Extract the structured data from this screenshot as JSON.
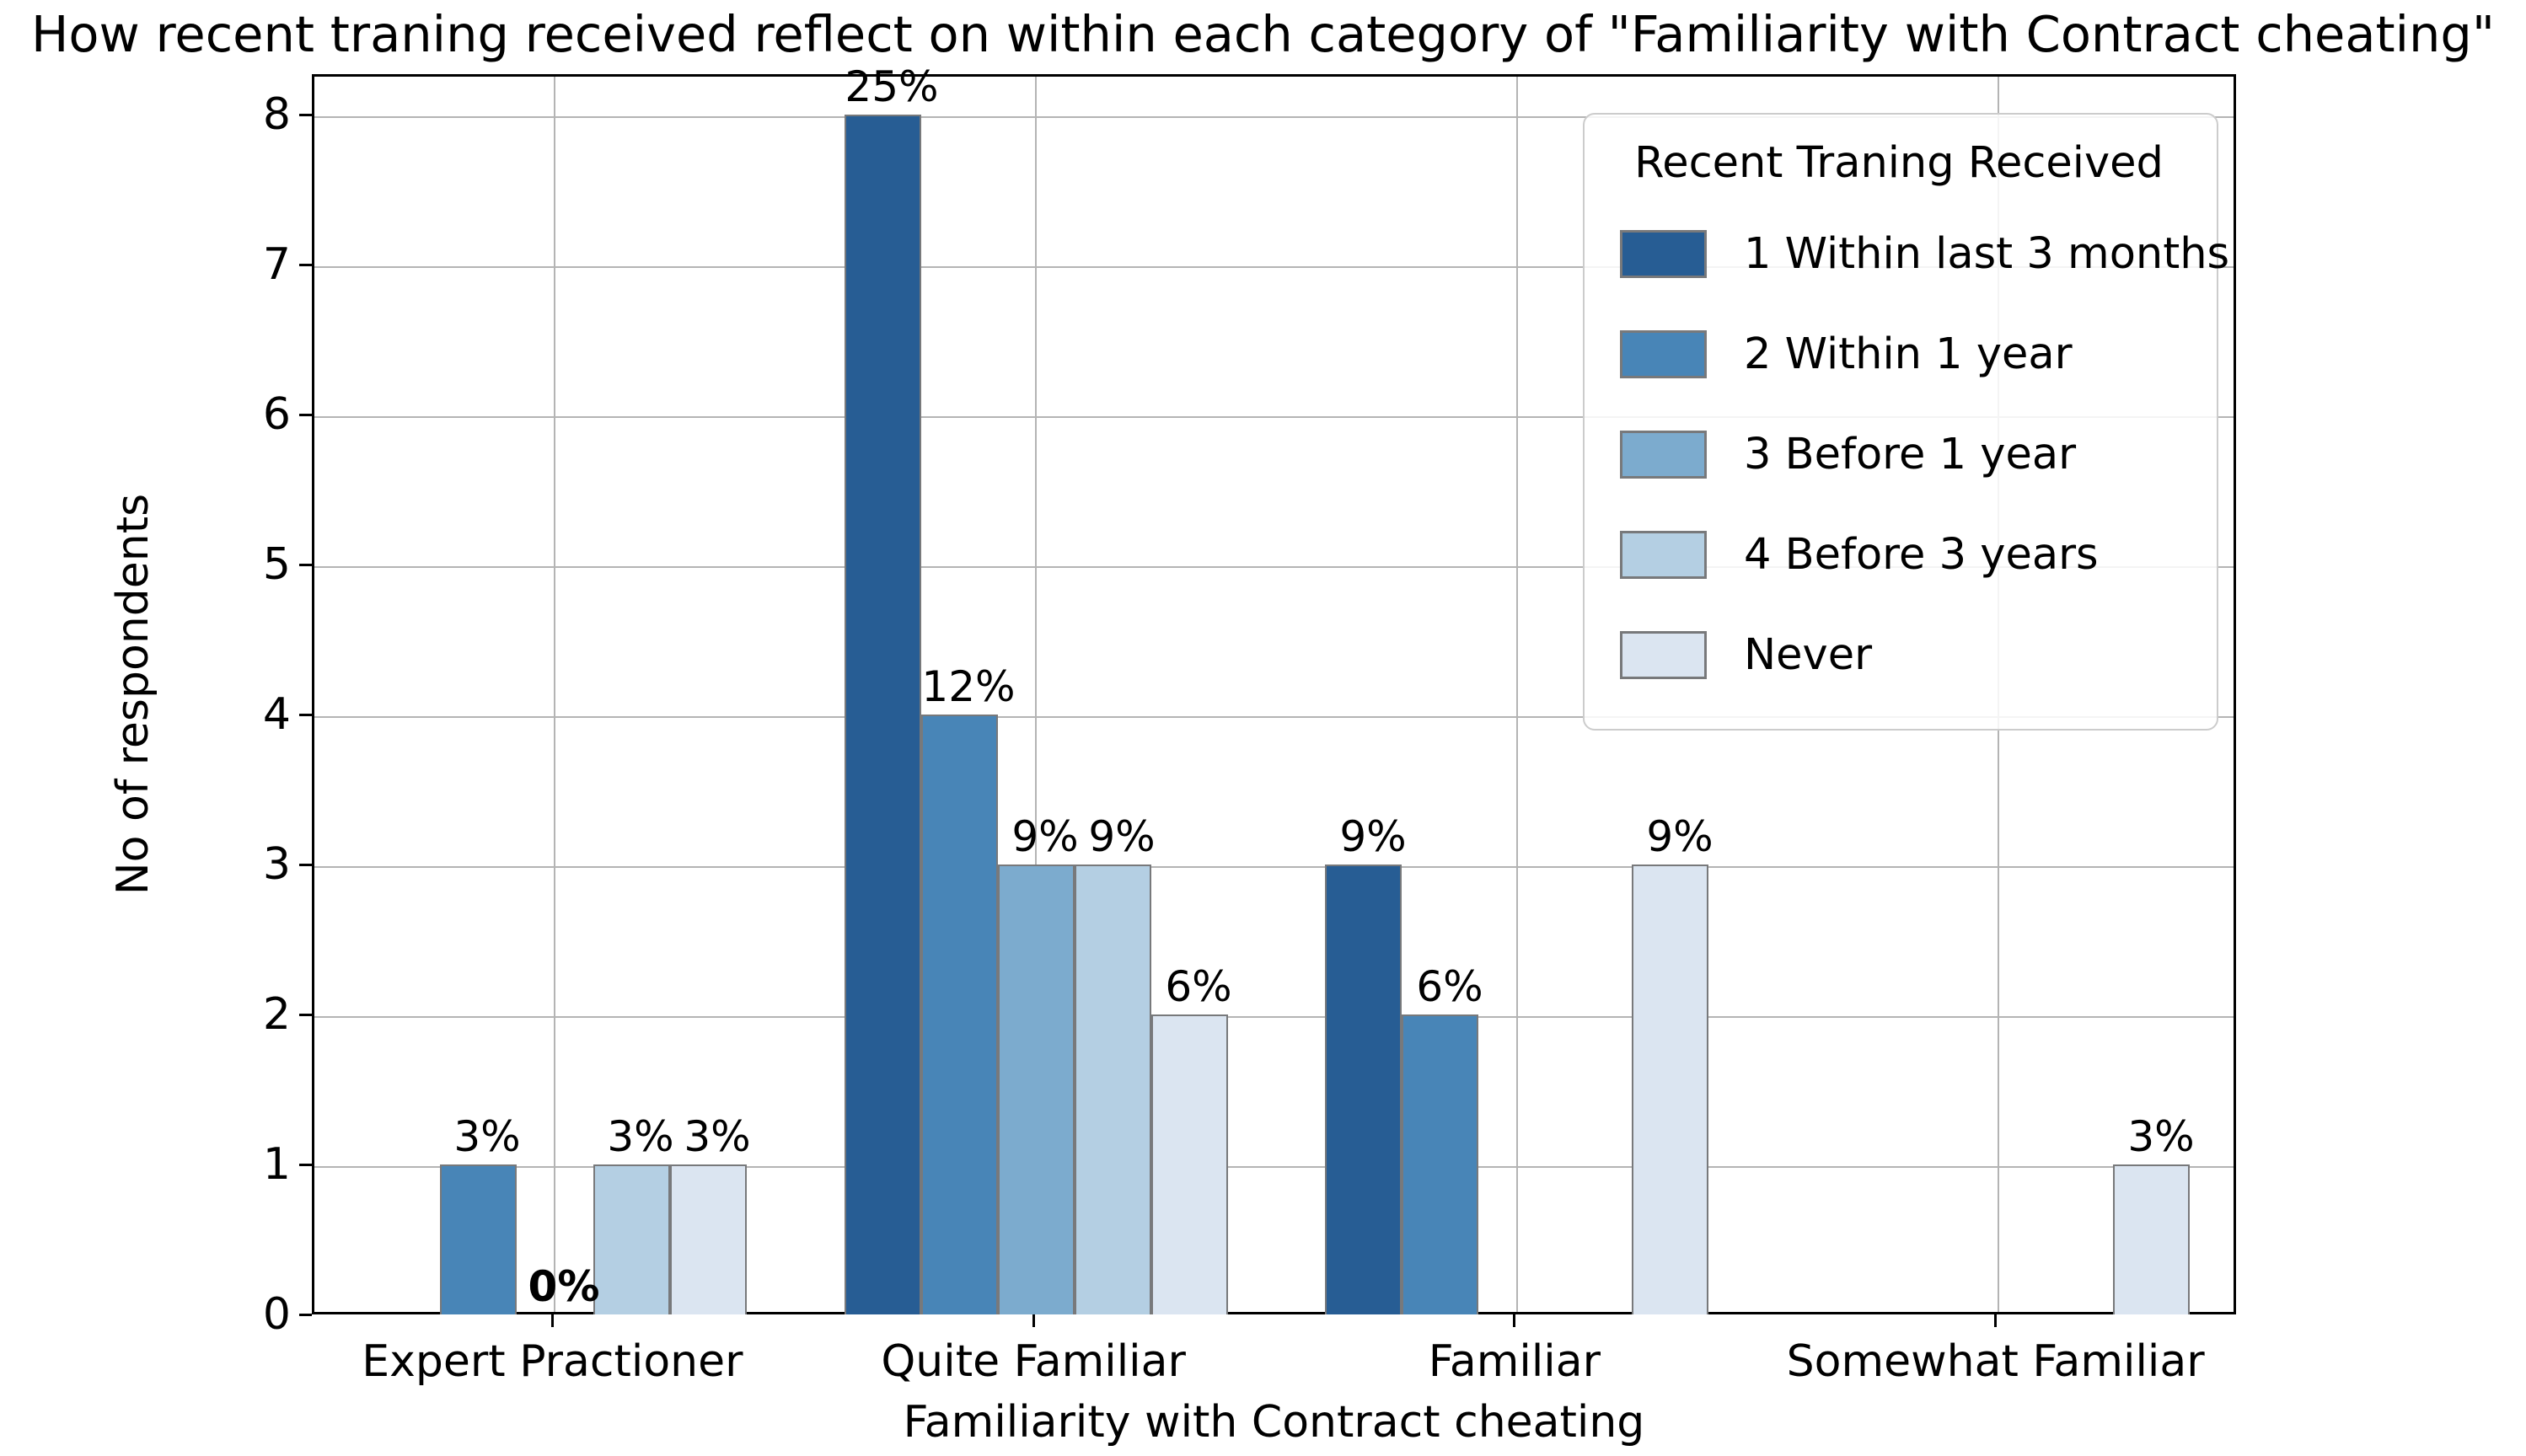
{
  "title": "How recent traning received reflect on within each category of \"Familiarity with Contract cheating\"",
  "chart_data": {
    "type": "bar",
    "grouped": true,
    "title": "How recent traning received reflect on within each category of \"Familiarity with Contract cheating\"",
    "xlabel": "Familiarity with Contract cheating",
    "ylabel": "No of respondents",
    "categories": [
      "Expert Practioner",
      "Quite Familiar",
      "Familiar",
      "Somewhat Familiar"
    ],
    "legend_title": "Recent Traning Received",
    "legend_position": "upper right",
    "grid": "both",
    "ylim": [
      0,
      8.27
    ],
    "yticks": [
      0,
      1,
      2,
      3,
      4,
      5,
      6,
      7,
      8
    ],
    "series": [
      {
        "name": "1 Within last 3 months",
        "color": "#275d94",
        "values": [
          null,
          8,
          3,
          null
        ],
        "labels": [
          null,
          "25%",
          "9%",
          null
        ]
      },
      {
        "name": "2 Within 1 year",
        "color": "#4885b7",
        "values": [
          1,
          4,
          2,
          null
        ],
        "labels": [
          "3%",
          "12%",
          "6%",
          null
        ]
      },
      {
        "name": "3 Before 1 year",
        "color": "#7cabce",
        "values": [
          0,
          3,
          null,
          null
        ],
        "labels": [
          "0%",
          "9%",
          null,
          null
        ]
      },
      {
        "name": "4 Before 3 years",
        "color": "#b4cfe3",
        "values": [
          1,
          3,
          null,
          null
        ],
        "labels": [
          "3%",
          "9%",
          null,
          null
        ]
      },
      {
        "name": "Never",
        "color": "#dbe5f1",
        "values": [
          1,
          2,
          3,
          1
        ],
        "labels": [
          "3%",
          "6%",
          "9%",
          "3%"
        ]
      }
    ]
  },
  "colors": {
    "grid": "#b4b4b4",
    "bar_edge": "#78797b",
    "spine": "#000000",
    "legend_border": "#cccccc",
    "text": "#000000",
    "background": "#ffffff"
  }
}
